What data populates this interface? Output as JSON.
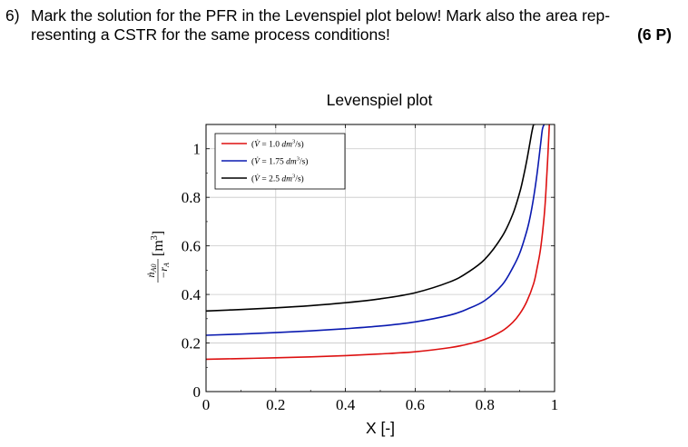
{
  "question": {
    "number": "6)",
    "line1": "Mark the solution for the PFR in the Levenspiel plot below! Mark also the area rep-",
    "line2": "resenting a CSTR for the same process conditions!",
    "points": "(6 P)"
  },
  "chart_data": {
    "type": "line",
    "title": "Levenspiel plot",
    "xlabel": "X [-]",
    "ylabel_parts": {
      "num": "ṅ",
      "num_sub": "A0",
      "den": "−r",
      "den_sub": "A",
      "unit": "[m",
      "unit_sup": "3",
      "unit_close": "]"
    },
    "xlim": [
      0,
      1
    ],
    "ylim": [
      0,
      1.1
    ],
    "x_ticks": [
      0,
      0.2,
      0.4,
      0.6,
      0.8,
      1
    ],
    "x_tick_labels": [
      "0",
      "0.2",
      "0.4",
      "0.6",
      "0.8",
      "1"
    ],
    "y_ticks": [
      0,
      0.2,
      0.4,
      0.6,
      0.8,
      1
    ],
    "y_tick_labels": [
      "0",
      "0.2",
      "0.4",
      "0.6",
      "0.8",
      "1"
    ],
    "grid": true,
    "legend_position": "top-left",
    "series": [
      {
        "name": "(V̇ = 1.0 dm³/s)",
        "label_parts": {
          "open": "(",
          "v": "V̇",
          "eq": " = 1.0 ",
          "unit": "dm",
          "sup": "3",
          "tail": "/s)"
        },
        "color": "#dd1111",
        "x": [
          0,
          0.1,
          0.2,
          0.3,
          0.4,
          0.5,
          0.6,
          0.7,
          0.75,
          0.8,
          0.85,
          0.88,
          0.9,
          0.92,
          0.94,
          0.95,
          0.96,
          0.97,
          0.975,
          0.98,
          0.985
        ],
        "values": [
          0.133,
          0.136,
          0.139,
          0.143,
          0.148,
          0.155,
          0.164,
          0.181,
          0.195,
          0.215,
          0.25,
          0.285,
          0.32,
          0.37,
          0.445,
          0.51,
          0.59,
          0.72,
          0.82,
          0.95,
          1.1
        ]
      },
      {
        "name": "(V̇ = 1.75 dm³/s)",
        "label_parts": {
          "open": "(",
          "v": "V̇",
          "eq": " = 1.75 ",
          "unit": "dm",
          "sup": "3",
          "tail": "/s)"
        },
        "color": "#0a1ab0",
        "x": [
          0,
          0.1,
          0.2,
          0.3,
          0.4,
          0.5,
          0.6,
          0.7,
          0.75,
          0.8,
          0.85,
          0.88,
          0.9,
          0.92,
          0.93,
          0.94,
          0.95,
          0.96,
          0.965,
          0.97
        ],
        "values": [
          0.232,
          0.237,
          0.243,
          0.25,
          0.259,
          0.27,
          0.287,
          0.315,
          0.34,
          0.375,
          0.44,
          0.51,
          0.57,
          0.66,
          0.72,
          0.8,
          0.9,
          1.02,
          1.08,
          1.1
        ]
      },
      {
        "name": "(V̇ = 2.5 dm³/s)",
        "label_parts": {
          "open": "(",
          "v": "V̇",
          "eq": " = 2.5 ",
          "unit": "dm",
          "sup": "3",
          "tail": "/s)"
        },
        "color": "#000000",
        "x": [
          0,
          0.1,
          0.2,
          0.3,
          0.4,
          0.5,
          0.6,
          0.7,
          0.75,
          0.8,
          0.85,
          0.88,
          0.9,
          0.91,
          0.92,
          0.93,
          0.935,
          0.94,
          0.945
        ],
        "values": [
          0.332,
          0.338,
          0.345,
          0.354,
          0.366,
          0.382,
          0.407,
          0.452,
          0.49,
          0.545,
          0.64,
          0.73,
          0.82,
          0.88,
          0.95,
          1.03,
          1.07,
          1.1,
          1.1
        ]
      }
    ]
  }
}
